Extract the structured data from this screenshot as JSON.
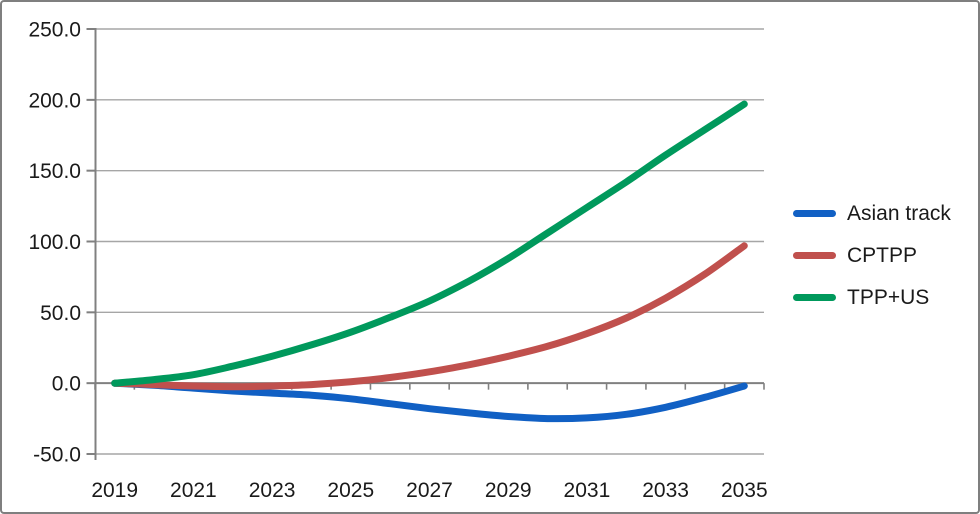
{
  "window": {
    "background": "#ffffff",
    "border_color": "#7f7f7f"
  },
  "chart_data": {
    "type": "line",
    "title": "",
    "xlabel": "",
    "ylabel": "",
    "x": [
      2019,
      2020,
      2021,
      2022,
      2023,
      2024,
      2025,
      2026,
      2027,
      2028,
      2029,
      2030,
      2031,
      2032,
      2033,
      2034,
      2035
    ],
    "x_tick_labels": [
      "2019",
      "2021",
      "2023",
      "2025",
      "2027",
      "2029",
      "2031",
      "2033",
      "2035"
    ],
    "y_tick_labels": [
      "-50.0",
      "0.0",
      "50.0",
      "100.0",
      "150.0",
      "200.0",
      "250.0"
    ],
    "ylim": [
      -50,
      250
    ],
    "y_tick_step": 50,
    "grid": true,
    "smooth_lines": true,
    "legend_position": "right",
    "axis_color": "#808080",
    "gridline_color": "#a6a6a6",
    "text_color": "#1a1a1a",
    "series": [
      {
        "name": "Asian track",
        "color": "#1160c4",
        "values": [
          0,
          -1.5,
          -3.5,
          -5.5,
          -7,
          -8.5,
          -11,
          -14.5,
          -18,
          -21,
          -23.5,
          -25,
          -24.5,
          -22,
          -17,
          -10,
          -2
        ]
      },
      {
        "name": "CPTPP",
        "color": "#c0504d",
        "values": [
          0,
          -1,
          -2,
          -2.5,
          -2,
          -1,
          1,
          4,
          8,
          13,
          19,
          26,
          35,
          46,
          60,
          77,
          97
        ]
      },
      {
        "name": "TPP+US",
        "color": "#00995c",
        "values": [
          0,
          2.5,
          6,
          12,
          19,
          27,
          36,
          46.5,
          58,
          72,
          88,
          106,
          124,
          142,
          161,
          179,
          197
        ]
      }
    ]
  },
  "legend": {
    "items": [
      {
        "label": "Asian track"
      },
      {
        "label": "CPTPP"
      },
      {
        "label": "TPP+US"
      }
    ]
  }
}
